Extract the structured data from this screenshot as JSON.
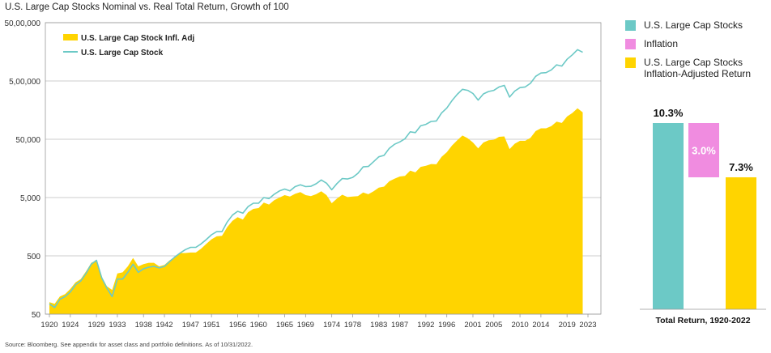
{
  "title": "U.S. Large Cap Stocks Nominal vs. Real Total Return, Growth of 100",
  "footnote": "Source: Bloomberg. See appendix for asset class and portfolio definitions. As of 10/31/2022.",
  "colors": {
    "nominal": "#6CC9C6",
    "real": "#FFD400",
    "inflation": "#F08CE0",
    "grid": "#CCCCCC"
  },
  "chart_data": [
    {
      "type": "area",
      "title": "U.S. Large Cap Stocks Nominal vs. Real Total Return, Growth of 100",
      "x_ticks": [
        "1920",
        "1924",
        "1929",
        "1933",
        "1938",
        "1942",
        "1947",
        "1951",
        "1956",
        "1960",
        "1965",
        "1969",
        "1974",
        "1978",
        "1983",
        "1987",
        "1992",
        "1996",
        "2001",
        "2005",
        "2010",
        "2014",
        "2019",
        "2023"
      ],
      "y_ticks": [
        "50",
        "500",
        "5,000",
        "50,000",
        "5,00,000",
        "50,00,000"
      ],
      "y_scale": "log",
      "ylim": [
        50,
        5000000
      ],
      "xlim": [
        1920,
        2023
      ],
      "grid": "horizontal",
      "legend_position": "top-left",
      "series": [
        {
          "name": "U.S. Large Cap Stock Infl. Adj",
          "type": "area",
          "x": [
            1920,
            1921,
            1922,
            1923,
            1924,
            1925,
            1926,
            1927,
            1928,
            1929,
            1930,
            1931,
            1932,
            1933,
            1934,
            1935,
            1936,
            1937,
            1938,
            1939,
            1940,
            1941,
            1942,
            1943,
            1944,
            1945,
            1946,
            1947,
            1948,
            1949,
            1950,
            1951,
            1952,
            1953,
            1954,
            1955,
            1956,
            1957,
            1958,
            1959,
            1960,
            1961,
            1962,
            1963,
            1964,
            1965,
            1966,
            1967,
            1968,
            1969,
            1970,
            1971,
            1972,
            1973,
            1974,
            1975,
            1976,
            1977,
            1978,
            1979,
            1980,
            1981,
            1982,
            1983,
            1984,
            1985,
            1986,
            1987,
            1988,
            1989,
            1990,
            1991,
            1992,
            1993,
            1994,
            1995,
            1996,
            1997,
            1998,
            1999,
            2000,
            2001,
            2002,
            2003,
            2004,
            2005,
            2006,
            2007,
            2008,
            2009,
            2010,
            2011,
            2012,
            2013,
            2014,
            2015,
            2016,
            2017,
            2018,
            2019,
            2020,
            2021,
            2022
          ],
          "values": [
            80,
            75,
            100,
            110,
            135,
            175,
            200,
            270,
            380,
            420,
            220,
            150,
            130,
            250,
            260,
            330,
            460,
            330,
            360,
            380,
            380,
            330,
            350,
            420,
            480,
            560,
            560,
            570,
            570,
            660,
            800,
            960,
            1080,
            1100,
            1550,
            2000,
            2300,
            2100,
            2800,
            3200,
            3300,
            4100,
            3800,
            4500,
            5000,
            5500,
            5200,
            5800,
            6200,
            5500,
            5300,
            5700,
            6400,
            5500,
            4000,
            4800,
            5600,
            5100,
            5200,
            5300,
            6100,
            5700,
            6400,
            7400,
            7700,
            9500,
            10500,
            11500,
            11800,
            14500,
            13500,
            16800,
            17500,
            18800,
            18600,
            25000,
            30000,
            39000,
            48000,
            58000,
            52000,
            44000,
            35000,
            44000,
            48000,
            49000,
            55000,
            56000,
            34000,
            42000,
            47000,
            47000,
            53000,
            69000,
            77000,
            77000,
            84000,
            100000,
            95000,
            123000,
            141000,
            170000,
            145000
          ]
        },
        {
          "name": "U.S. Large Cap Stock",
          "type": "line",
          "x": [
            1920,
            1921,
            1922,
            1923,
            1924,
            1925,
            1926,
            1927,
            1928,
            1929,
            1930,
            1931,
            1932,
            1933,
            1934,
            1935,
            1936,
            1937,
            1938,
            1939,
            1940,
            1941,
            1942,
            1943,
            1944,
            1945,
            1946,
            1947,
            1948,
            1949,
            1950,
            1951,
            1952,
            1953,
            1954,
            1955,
            1956,
            1957,
            1958,
            1959,
            1960,
            1961,
            1962,
            1963,
            1964,
            1965,
            1966,
            1967,
            1968,
            1969,
            1970,
            1971,
            1972,
            1973,
            1974,
            1975,
            1976,
            1977,
            1978,
            1979,
            1980,
            1981,
            1982,
            1983,
            1984,
            1985,
            1986,
            1987,
            1988,
            1989,
            1990,
            1991,
            1992,
            1993,
            1994,
            1995,
            1996,
            1997,
            1998,
            1999,
            2000,
            2001,
            2002,
            2003,
            2004,
            2005,
            2006,
            2007,
            2008,
            2009,
            2010,
            2011,
            2012,
            2013,
            2014,
            2015,
            2016,
            2017,
            2018,
            2019,
            2020,
            2021,
            2022
          ],
          "values": [
            75,
            65,
            90,
            100,
            120,
            160,
            185,
            250,
            360,
            420,
            210,
            140,
            100,
            200,
            200,
            260,
            360,
            260,
            300,
            320,
            330,
            310,
            330,
            400,
            480,
            560,
            640,
            700,
            700,
            800,
            950,
            1150,
            1300,
            1300,
            1900,
            2500,
            2900,
            2700,
            3500,
            4000,
            4000,
            5000,
            4800,
            5700,
            6500,
            7000,
            6500,
            7700,
            8300,
            7700,
            7800,
            8600,
            10000,
            8800,
            6800,
            8700,
            10600,
            10400,
            11100,
            13000,
            16800,
            17100,
            20600,
            25000,
            26500,
            35000,
            41000,
            45000,
            51000,
            67000,
            65000,
            85000,
            90000,
            101000,
            103000,
            141000,
            172000,
            230000,
            295000,
            360000,
            345000,
            305000,
            235000,
            300000,
            330000,
            345000,
            395000,
            420000,
            265000,
            335000,
            385000,
            395000,
            455000,
            600000,
            685000,
            695000,
            775000,
            945000,
            900000,
            1180000,
            1400000,
            1725000,
            1550000
          ]
        }
      ]
    },
    {
      "type": "bar",
      "xlabel": "Total Return, 1920-2022",
      "categories": [
        "U.S. Large Cap Stocks",
        "Inflation",
        "U.S. Large Cap Stocks Inflation-Adjusted Return"
      ],
      "values": [
        10.3,
        3.0,
        7.3
      ],
      "labels": [
        "10.3%",
        "3.0%",
        "7.3%"
      ],
      "layout": "waterfall",
      "legend_position": "top",
      "legend": [
        "U.S. Large Cap Stocks",
        "Inflation",
        "U.S. Large Cap Stocks\nInflation-Adjusted Return"
      ]
    }
  ]
}
